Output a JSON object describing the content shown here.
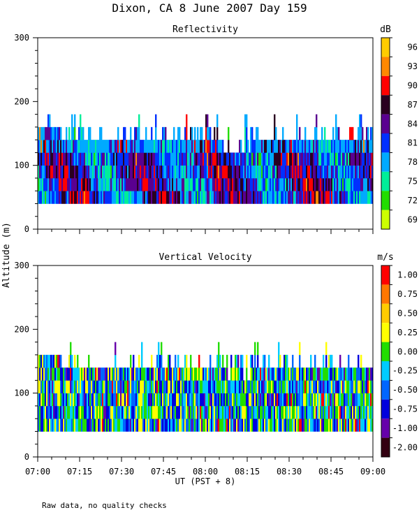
{
  "title": "Dixon, CA  8 June 2007  Day 159",
  "ylabel": "Altitude (m)",
  "xlabel": "UT  (PST + 8)",
  "footnote": "Raw data, no quality checks",
  "x_ticks": [
    "07:00",
    "07:15",
    "07:30",
    "07:45",
    "08:00",
    "08:15",
    "08:30",
    "08:45",
    "09:00"
  ],
  "chart_data": [
    {
      "type": "heatmap",
      "title": "Reflectivity",
      "x_range": [
        "07:00",
        "09:00"
      ],
      "ylim": [
        0,
        300
      ],
      "y_ticks": [
        0,
        100,
        200,
        300
      ],
      "data_altitude_range": [
        40,
        180
      ],
      "colorbar": {
        "unit": "dB",
        "labels": [
          "96",
          "93",
          "90",
          "87",
          "84",
          "81",
          "78",
          "75",
          "72",
          "69"
        ],
        "colors": [
          "#ffcc00",
          "#ff8800",
          "#ff0000",
          "#2a0020",
          "#5a0090",
          "#0030ff",
          "#00aaff",
          "#00ee99",
          "#22dd00",
          "#ccff00"
        ]
      }
    },
    {
      "type": "heatmap",
      "title": "Vertical Velocity",
      "x_range": [
        "07:00",
        "09:00"
      ],
      "ylim": [
        0,
        300
      ],
      "y_ticks": [
        0,
        100,
        200,
        300
      ],
      "data_altitude_range": [
        40,
        180
      ],
      "colorbar": {
        "unit": "m/s",
        "labels": [
          "1.00",
          "0.75",
          "0.50",
          "0.25",
          "0.00",
          "-0.25",
          "-0.50",
          "-0.75",
          "-1.00",
          "-2.00"
        ],
        "colors": [
          "#ff0000",
          "#ff7700",
          "#ffcc00",
          "#ffff00",
          "#22dd00",
          "#00ccff",
          "#0066ff",
          "#0000dd",
          "#6600aa",
          "#330011"
        ]
      }
    }
  ]
}
